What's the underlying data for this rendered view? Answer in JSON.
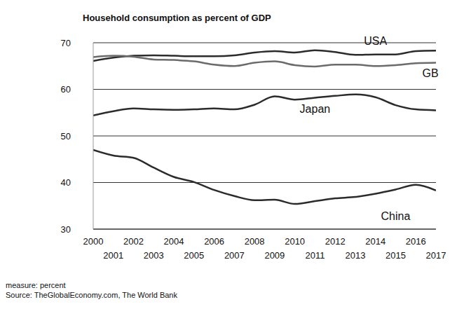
{
  "chart_data": {
    "type": "line",
    "title": "Household consumption as percent of GDP",
    "footnotes": [
      "measure: percent",
      "Source: TheGlobalEconomy.com, The World Bank"
    ],
    "x": [
      2000,
      2001,
      2002,
      2003,
      2004,
      2005,
      2006,
      2007,
      2008,
      2009,
      2010,
      2011,
      2012,
      2013,
      2014,
      2015,
      2016,
      2017
    ],
    "series": [
      {
        "name": "USA",
        "color": "#2b2b2b",
        "values": [
          66.1,
          66.8,
          67.2,
          67.3,
          67.2,
          67.1,
          67.1,
          67.3,
          67.9,
          68.2,
          67.9,
          68.4,
          68.0,
          67.4,
          67.5,
          67.5,
          68.2,
          68.3
        ]
      },
      {
        "name": "GB",
        "color": "#6b6b6b",
        "values": [
          66.9,
          67.2,
          67.0,
          66.4,
          66.3,
          66.0,
          65.3,
          65.0,
          65.7,
          66.0,
          65.2,
          64.9,
          65.3,
          65.3,
          65.0,
          65.2,
          65.6,
          65.7
        ]
      },
      {
        "name": "Japan",
        "color": "#2b2b2b",
        "values": [
          54.4,
          55.3,
          55.9,
          55.7,
          55.6,
          55.7,
          55.9,
          55.7,
          56.7,
          58.5,
          57.8,
          58.2,
          58.6,
          58.9,
          58.3,
          56.6,
          55.7,
          55.5
        ]
      },
      {
        "name": "China",
        "color": "#2b2b2b",
        "values": [
          47.0,
          45.8,
          45.3,
          43.2,
          41.2,
          40.1,
          38.4,
          37.1,
          36.2,
          36.3,
          35.4,
          36.0,
          36.6,
          36.9,
          37.6,
          38.5,
          39.5,
          38.3
        ]
      }
    ],
    "xlim": [
      2000,
      2017
    ],
    "xticks": [
      2000,
      2001,
      2002,
      2003,
      2004,
      2005,
      2006,
      2007,
      2008,
      2009,
      2010,
      2011,
      2012,
      2013,
      2014,
      2015,
      2016,
      2017
    ],
    "ylim": [
      30,
      70
    ],
    "yticks": [
      30,
      40,
      50,
      60,
      70
    ],
    "grid": true
  }
}
